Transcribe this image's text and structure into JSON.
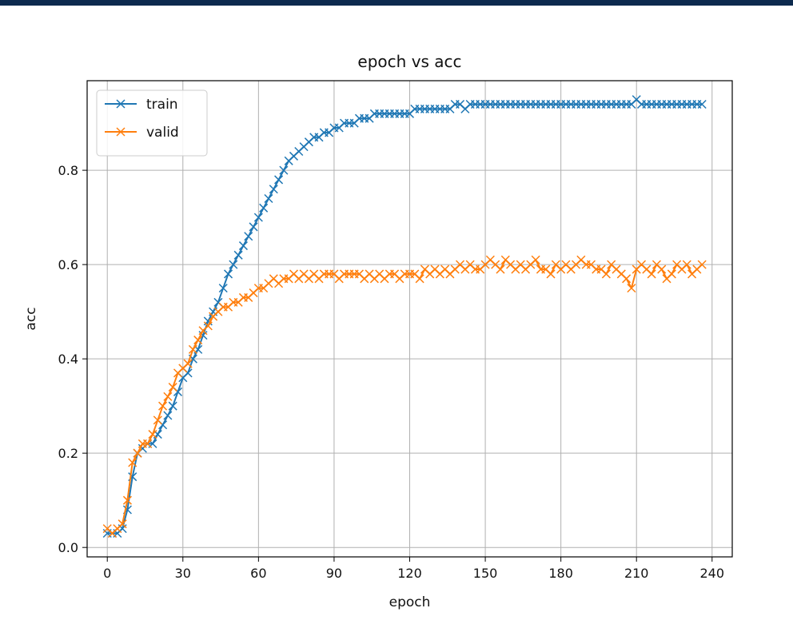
{
  "chart_data": {
    "type": "line",
    "title": "epoch vs acc",
    "xlabel": "epoch",
    "ylabel": "acc",
    "xlim": [
      -8,
      248
    ],
    "ylim": [
      -0.02,
      0.99
    ],
    "xticks": [
      0,
      30,
      60,
      90,
      120,
      150,
      180,
      210,
      240
    ],
    "yticks": [
      0.0,
      0.2,
      0.4,
      0.6,
      0.8
    ],
    "ytick_labels": [
      "0.0",
      "0.2",
      "0.4",
      "0.6",
      "0.8"
    ],
    "grid": true,
    "legend_position": "top-left",
    "marker": "x",
    "x": [
      0,
      2,
      4,
      6,
      8,
      10,
      12,
      14,
      16,
      18,
      20,
      22,
      24,
      26,
      28,
      30,
      32,
      34,
      36,
      38,
      40,
      42,
      44,
      46,
      48,
      50,
      52,
      54,
      56,
      58,
      60,
      62,
      64,
      66,
      68,
      70,
      72,
      74,
      76,
      78,
      80,
      82,
      84,
      86,
      88,
      90,
      92,
      94,
      96,
      98,
      100,
      102,
      104,
      106,
      108,
      110,
      112,
      114,
      116,
      118,
      120,
      122,
      124,
      126,
      128,
      130,
      132,
      134,
      136,
      138,
      140,
      142,
      144,
      146,
      148,
      150,
      152,
      154,
      156,
      158,
      160,
      162,
      164,
      166,
      168,
      170,
      172,
      174,
      176,
      178,
      180,
      182,
      184,
      186,
      188,
      190,
      192,
      194,
      196,
      198,
      200,
      202,
      204,
      206,
      208,
      210,
      212,
      214,
      216,
      218,
      220,
      222,
      224,
      226,
      228,
      230,
      232,
      234,
      236
    ],
    "series": [
      {
        "name": "train",
        "color": "#1f77b4",
        "values": [
          0.03,
          0.03,
          0.03,
          0.04,
          0.08,
          0.15,
          0.2,
          0.21,
          0.22,
          0.22,
          0.24,
          0.26,
          0.28,
          0.3,
          0.33,
          0.36,
          0.37,
          0.4,
          0.42,
          0.45,
          0.48,
          0.5,
          0.52,
          0.55,
          0.58,
          0.6,
          0.62,
          0.64,
          0.66,
          0.68,
          0.7,
          0.72,
          0.74,
          0.76,
          0.78,
          0.8,
          0.82,
          0.83,
          0.84,
          0.85,
          0.86,
          0.87,
          0.87,
          0.88,
          0.88,
          0.89,
          0.89,
          0.9,
          0.9,
          0.9,
          0.91,
          0.91,
          0.91,
          0.92,
          0.92,
          0.92,
          0.92,
          0.92,
          0.92,
          0.92,
          0.92,
          0.93,
          0.93,
          0.93,
          0.93,
          0.93,
          0.93,
          0.93,
          0.93,
          0.94,
          0.94,
          0.93,
          0.94,
          0.94,
          0.94,
          0.94,
          0.94,
          0.94,
          0.94,
          0.94,
          0.94,
          0.94,
          0.94,
          0.94,
          0.94,
          0.94,
          0.94,
          0.94,
          0.94,
          0.94,
          0.94,
          0.94,
          0.94,
          0.94,
          0.94,
          0.94,
          0.94,
          0.94,
          0.94,
          0.94,
          0.94,
          0.94,
          0.94,
          0.94,
          0.94,
          0.95,
          0.94,
          0.94,
          0.94,
          0.94,
          0.94,
          0.94,
          0.94,
          0.94,
          0.94,
          0.94,
          0.94,
          0.94,
          0.94
        ]
      },
      {
        "name": "valid",
        "color": "#ff7f0e",
        "values": [
          0.04,
          0.03,
          0.04,
          0.05,
          0.1,
          0.18,
          0.2,
          0.22,
          0.22,
          0.24,
          0.27,
          0.3,
          0.32,
          0.34,
          0.37,
          0.38,
          0.39,
          0.42,
          0.44,
          0.46,
          0.47,
          0.49,
          0.5,
          0.51,
          0.51,
          0.52,
          0.52,
          0.53,
          0.53,
          0.54,
          0.55,
          0.55,
          0.56,
          0.57,
          0.56,
          0.57,
          0.57,
          0.58,
          0.57,
          0.58,
          0.57,
          0.58,
          0.57,
          0.58,
          0.58,
          0.58,
          0.57,
          0.58,
          0.58,
          0.58,
          0.58,
          0.57,
          0.58,
          0.57,
          0.58,
          0.57,
          0.58,
          0.58,
          0.57,
          0.58,
          0.58,
          0.58,
          0.57,
          0.59,
          0.58,
          0.59,
          0.58,
          0.59,
          0.58,
          0.59,
          0.6,
          0.59,
          0.6,
          0.59,
          0.59,
          0.6,
          0.61,
          0.6,
          0.59,
          0.61,
          0.6,
          0.59,
          0.6,
          0.59,
          0.6,
          0.61,
          0.59,
          0.59,
          0.58,
          0.6,
          0.59,
          0.6,
          0.59,
          0.6,
          0.61,
          0.6,
          0.6,
          0.59,
          0.59,
          0.58,
          0.6,
          0.59,
          0.58,
          0.57,
          0.55,
          0.59,
          0.6,
          0.59,
          0.58,
          0.6,
          0.59,
          0.57,
          0.58,
          0.6,
          0.59,
          0.6,
          0.58,
          0.59,
          0.6
        ]
      }
    ]
  }
}
